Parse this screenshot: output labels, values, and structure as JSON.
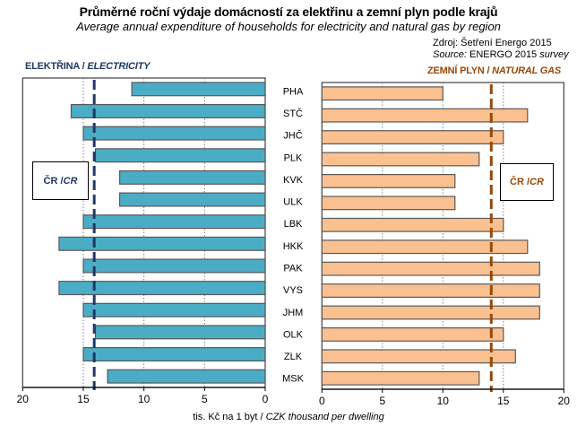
{
  "chart_data": [
    {
      "type": "bar",
      "orientation": "horizontal",
      "direction": "right-to-left",
      "panel_label": "ELEKTŘINA",
      "panel_label_en": "ELECTRICITY",
      "categories": [
        "PHA",
        "STČ",
        "JHČ",
        "PLK",
        "KVK",
        "ULK",
        "LBK",
        "HKK",
        "PAK",
        "VYS",
        "JHM",
        "OLK",
        "ZLK",
        "MSK"
      ],
      "values": [
        11,
        16,
        15,
        14,
        12,
        12,
        15,
        17,
        15,
        17,
        15,
        14,
        15,
        13
      ],
      "reference_line": {
        "label": "ČR",
        "label_en": "CR",
        "value": 14.1
      },
      "xlim": [
        0,
        20
      ],
      "xticks": [
        20,
        15,
        10,
        5,
        0
      ],
      "grid": true,
      "bar_color": "#4bacc6",
      "line_color": "#1f3864"
    },
    {
      "type": "bar",
      "orientation": "horizontal",
      "direction": "left-to-right",
      "panel_label": "ZEMNÍ PLYN",
      "panel_label_en": "NATURAL GAS",
      "categories": [
        "PHA",
        "STČ",
        "JHČ",
        "PLK",
        "KVK",
        "ULK",
        "LBK",
        "HKK",
        "PAK",
        "VYS",
        "JHM",
        "OLK",
        "ZLK",
        "MSK"
      ],
      "values": [
        10,
        17,
        15,
        13,
        11,
        11,
        15,
        17,
        18,
        18,
        18,
        15,
        16,
        13
      ],
      "reference_line": {
        "label": "ČR",
        "label_en": "CR",
        "value": 14.0
      },
      "xlim": [
        0,
        20
      ],
      "xticks": [
        0,
        5,
        10,
        15,
        20
      ],
      "grid": true,
      "bar_color": "#fac090",
      "line_color": "#984807"
    }
  ],
  "title": "Průměrné roční výdaje domácností za elektřinu a zemní plyn podle krajů",
  "subtitle": "Average annual expenditure of households for electricity and natural gas by region",
  "source": {
    "line1": "Zdroj: Šetření Energo 2015",
    "line2_prefix": "Source:",
    "line2_main": " ENERGO 2015 ",
    "line2_suffix": "survey"
  },
  "labels": {
    "elec_cz": "ELEKTŘINA / ",
    "elec_en": "ELECTRICITY",
    "gas_cz": "ZEMNÍ PLYN / ",
    "gas_en": "NATURAL GAS",
    "cr_cz": "ČR / ",
    "cr_en": "CR"
  },
  "xlabel": {
    "cz": "tis. Kč na 1 byt / ",
    "en": "CZK thousand per dwelling"
  }
}
